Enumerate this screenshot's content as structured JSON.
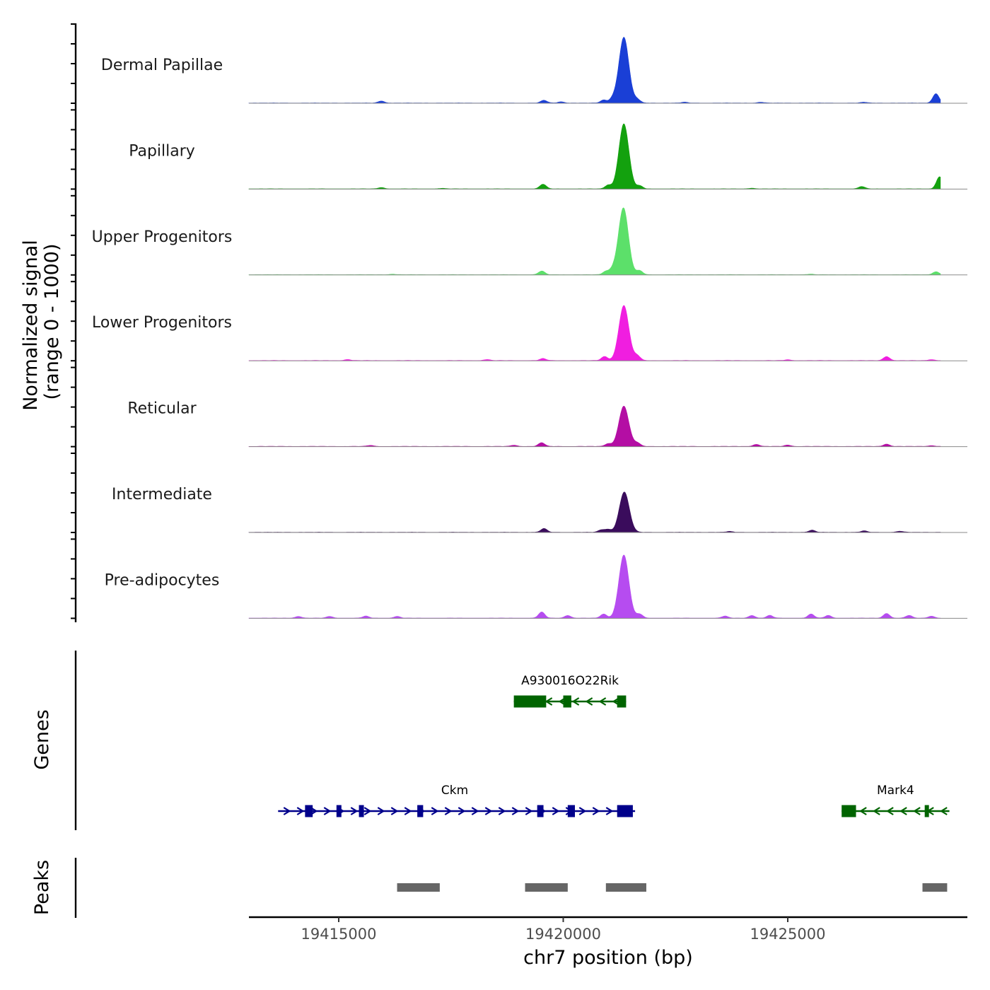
{
  "chart_data": {
    "type": "area",
    "title": "",
    "ylabel_line1": "Normalized signal",
    "ylabel_line2": "(range 0 - 1000)",
    "xlabel": "chr7 position (bp)",
    "genes_label": "Genes",
    "peaks_label": "Peaks",
    "xlim": [
      19413000,
      19429000
    ],
    "x_ticks": [
      19415000,
      19420000,
      19425000
    ],
    "x_tick_labels": [
      "19415000",
      "19420000",
      "19425000"
    ],
    "ylim": [
      0,
      1000
    ],
    "tracks": [
      {
        "name": "Dermal Papillae",
        "color": "#1a3fd6",
        "peaks": [
          [
            19415950,
            30
          ],
          [
            19419570,
            40
          ],
          [
            19419950,
            18
          ],
          [
            19420900,
            45
          ],
          [
            19421100,
            55
          ],
          [
            19421350,
            980
          ],
          [
            19421650,
            50
          ],
          [
            19428300,
            140
          ],
          [
            19422700,
            12
          ],
          [
            19424400,
            12
          ],
          [
            19426700,
            12
          ]
        ]
      },
      {
        "name": "Papillary",
        "color": "#13a10e",
        "peaks": [
          [
            19415950,
            20
          ],
          [
            19419550,
            70
          ],
          [
            19421000,
            55
          ],
          [
            19421350,
            970
          ],
          [
            19421700,
            45
          ],
          [
            19426650,
            35
          ],
          [
            19428380,
            180
          ],
          [
            19417300,
            8
          ],
          [
            19424200,
            10
          ]
        ]
      },
      {
        "name": "Upper Progenitors",
        "color": "#5ce06a",
        "peaks": [
          [
            19419520,
            55
          ],
          [
            19420950,
            50
          ],
          [
            19421100,
            60
          ],
          [
            19421340,
            1000
          ],
          [
            19421700,
            60
          ],
          [
            19428300,
            45
          ],
          [
            19416200,
            8
          ],
          [
            19425500,
            8
          ]
        ]
      },
      {
        "name": "Lower Progenitors",
        "color": "#f01ee0",
        "peaks": [
          [
            19415200,
            15
          ],
          [
            19418300,
            15
          ],
          [
            19419550,
            30
          ],
          [
            19420920,
            60
          ],
          [
            19421350,
            820
          ],
          [
            19421650,
            70
          ],
          [
            19427200,
            60
          ],
          [
            19425000,
            12
          ],
          [
            19428200,
            15
          ]
        ]
      },
      {
        "name": "Reticular",
        "color": "#b40ea4",
        "peaks": [
          [
            19415700,
            15
          ],
          [
            19418900,
            18
          ],
          [
            19419520,
            55
          ],
          [
            19421000,
            40
          ],
          [
            19421350,
            600
          ],
          [
            19421650,
            50
          ],
          [
            19424300,
            30
          ],
          [
            19425000,
            20
          ],
          [
            19427200,
            35
          ],
          [
            19428200,
            12
          ]
        ]
      },
      {
        "name": "Intermediate",
        "color": "#3a0c5c",
        "peaks": [
          [
            19419570,
            55
          ],
          [
            19420850,
            35
          ],
          [
            19421000,
            40
          ],
          [
            19421360,
            600
          ],
          [
            19423700,
            12
          ],
          [
            19425540,
            30
          ],
          [
            19426700,
            20
          ],
          [
            19427500,
            15
          ]
        ]
      },
      {
        "name": "Pre-adipocytes",
        "color": "#b64cf0",
        "peaks": [
          [
            19414100,
            25
          ],
          [
            19414800,
            25
          ],
          [
            19415600,
            30
          ],
          [
            19416300,
            25
          ],
          [
            19419520,
            90
          ],
          [
            19420100,
            40
          ],
          [
            19420900,
            60
          ],
          [
            19421350,
            940
          ],
          [
            19421700,
            60
          ],
          [
            19423600,
            30
          ],
          [
            19424200,
            40
          ],
          [
            19424600,
            40
          ],
          [
            19425520,
            60
          ],
          [
            19425900,
            40
          ],
          [
            19427200,
            70
          ],
          [
            19427700,
            40
          ],
          [
            19428200,
            30
          ]
        ]
      }
    ],
    "genes": [
      {
        "name": "A930016O22Rik",
        "start": 19418900,
        "end": 19421400,
        "strand": "-",
        "color": "#006400",
        "row": 1,
        "exons": [
          [
            19418900,
            19419620
          ],
          [
            19420000,
            19420180
          ],
          [
            19421200,
            19421400
          ]
        ]
      },
      {
        "name": "Ckm",
        "start": 19413650,
        "end": 19421600,
        "strand": "+",
        "color": "#00008b",
        "row": 2,
        "exons": [
          [
            19414250,
            19414420
          ],
          [
            19414950,
            19415060
          ],
          [
            19415450,
            19415560
          ],
          [
            19416750,
            19416880
          ],
          [
            19419420,
            19419560
          ],
          [
            19420100,
            19420260
          ],
          [
            19421200,
            19421550
          ]
        ]
      },
      {
        "name": "Mark4",
        "start": 19426200,
        "end": 19428600,
        "strand": "-",
        "color": "#006400",
        "row": 2,
        "exons": [
          [
            19426200,
            19426520
          ],
          [
            19428050,
            19428100
          ]
        ]
      }
    ],
    "peak_regions": [
      [
        19416300,
        19417250
      ],
      [
        19419150,
        19420100
      ],
      [
        19420950,
        19421850
      ],
      [
        19428000,
        19428550
      ]
    ]
  }
}
